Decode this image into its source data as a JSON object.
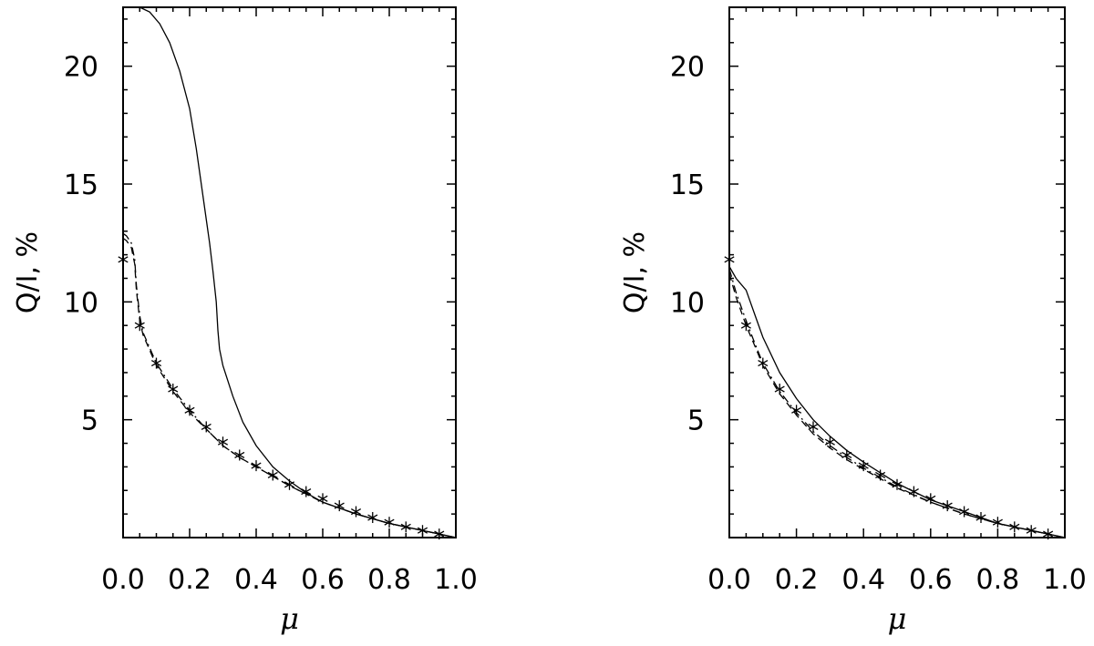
{
  "chart_data": [
    {
      "type": "line",
      "panel": "left",
      "xlabel": "μ",
      "ylabel": "Q/I, %",
      "xlim": [
        0.0,
        1.0
      ],
      "ylim": [
        0.0,
        22.5
      ],
      "xticks": [
        0.0,
        0.2,
        0.4,
        0.6,
        0.8,
        1.0
      ],
      "xtick_labels": [
        "0.0",
        "0.2",
        "0.4",
        "0.6",
        "0.8",
        "1.0"
      ],
      "yticks": [
        5,
        10,
        15,
        20
      ],
      "ytick_labels": [
        "5",
        "10",
        "15",
        "20"
      ],
      "grid": false,
      "series": [
        {
          "style": "solid",
          "x": [
            0.05,
            0.08,
            0.11,
            0.14,
            0.17,
            0.2,
            0.22,
            0.24,
            0.26,
            0.27,
            0.28,
            0.285,
            0.29,
            0.3,
            0.33,
            0.36,
            0.4,
            0.45,
            0.5,
            0.55,
            0.6,
            0.7,
            0.8,
            0.9,
            0.95,
            1.0
          ],
          "y": [
            22.5,
            22.3,
            21.8,
            21.0,
            19.8,
            18.2,
            16.5,
            14.5,
            12.5,
            11.3,
            10.0,
            8.8,
            8.0,
            7.3,
            6.0,
            4.9,
            3.9,
            3.0,
            2.4,
            1.9,
            1.5,
            1.0,
            0.6,
            0.3,
            0.15,
            0.0
          ]
        },
        {
          "style": "dashed",
          "x": [
            0.0,
            0.01,
            0.025,
            0.035,
            0.04,
            0.05,
            0.06,
            0.1,
            0.15,
            0.2,
            0.25,
            0.3,
            0.35,
            0.4,
            0.5,
            0.6,
            0.7,
            0.8,
            0.9,
            1.0
          ],
          "y": [
            12.7,
            12.6,
            12.3,
            11.6,
            10.5,
            9.2,
            8.6,
            7.3,
            6.2,
            5.3,
            4.6,
            3.9,
            3.4,
            3.0,
            2.2,
            1.5,
            1.0,
            0.6,
            0.3,
            0.0
          ]
        },
        {
          "style": "dash-dot",
          "x": [
            0.0,
            0.01,
            0.025,
            0.035,
            0.04,
            0.05,
            0.06,
            0.1,
            0.15,
            0.2,
            0.25,
            0.3,
            0.35,
            0.4,
            0.5,
            0.6,
            0.7,
            0.8,
            0.9,
            1.0
          ],
          "y": [
            12.9,
            12.8,
            12.5,
            11.8,
            10.7,
            9.4,
            8.7,
            7.4,
            6.3,
            5.4,
            4.6,
            3.9,
            3.4,
            3.0,
            2.2,
            1.5,
            1.0,
            0.6,
            0.3,
            0.0
          ]
        },
        {
          "style": "asterisk",
          "x": [
            0.0,
            0.05,
            0.1,
            0.15,
            0.2,
            0.25,
            0.3,
            0.35,
            0.4,
            0.45,
            0.5,
            0.55,
            0.6,
            0.65,
            0.7,
            0.75,
            0.8,
            0.85,
            0.9,
            0.95
          ],
          "y": [
            11.8,
            9.0,
            7.4,
            6.3,
            5.4,
            4.7,
            4.05,
            3.5,
            3.05,
            2.65,
            2.25,
            1.95,
            1.65,
            1.35,
            1.1,
            0.85,
            0.65,
            0.45,
            0.3,
            0.15
          ]
        }
      ]
    },
    {
      "type": "line",
      "panel": "right",
      "xlabel": "μ",
      "ylabel": "Q/I, %",
      "xlim": [
        0.0,
        1.0
      ],
      "ylim": [
        0.0,
        22.5
      ],
      "xticks": [
        0.0,
        0.2,
        0.4,
        0.6,
        0.8,
        1.0
      ],
      "xtick_labels": [
        "0.0",
        "0.2",
        "0.4",
        "0.6",
        "0.8",
        "1.0"
      ],
      "yticks": [
        5,
        10,
        15,
        20
      ],
      "ytick_labels": [
        "5",
        "10",
        "15",
        "20"
      ],
      "grid": false,
      "series": [
        {
          "style": "solid",
          "x": [
            0.0,
            0.02,
            0.05,
            0.08,
            0.1,
            0.15,
            0.2,
            0.25,
            0.3,
            0.35,
            0.4,
            0.5,
            0.6,
            0.7,
            0.8,
            0.9,
            1.0
          ],
          "y": [
            11.5,
            11.0,
            10.5,
            9.3,
            8.5,
            7.0,
            5.9,
            5.0,
            4.3,
            3.7,
            3.2,
            2.3,
            1.6,
            1.1,
            0.6,
            0.3,
            0.0
          ]
        },
        {
          "style": "dashed",
          "x": [
            0.0,
            0.02,
            0.05,
            0.08,
            0.1,
            0.15,
            0.2,
            0.25,
            0.3,
            0.35,
            0.4,
            0.5,
            0.6,
            0.7,
            0.8,
            0.9,
            1.0
          ],
          "y": [
            11.2,
            10.2,
            9.0,
            8.0,
            7.3,
            6.1,
            5.2,
            4.4,
            3.8,
            3.3,
            2.9,
            2.1,
            1.5,
            1.0,
            0.6,
            0.3,
            0.0
          ]
        },
        {
          "style": "dash-dot",
          "x": [
            0.0,
            0.02,
            0.05,
            0.08,
            0.1,
            0.15,
            0.2,
            0.25,
            0.3,
            0.35,
            0.4,
            0.5,
            0.6,
            0.7,
            0.8,
            0.9,
            1.0
          ],
          "y": [
            11.4,
            10.4,
            9.2,
            8.1,
            7.4,
            6.2,
            5.3,
            4.5,
            3.9,
            3.4,
            2.95,
            2.15,
            1.5,
            1.0,
            0.6,
            0.3,
            0.0
          ]
        },
        {
          "style": "asterisk",
          "x": [
            0.0,
            0.05,
            0.1,
            0.15,
            0.2,
            0.25,
            0.3,
            0.35,
            0.4,
            0.45,
            0.5,
            0.55,
            0.6,
            0.65,
            0.7,
            0.75,
            0.8,
            0.85,
            0.9,
            0.95
          ],
          "y": [
            11.8,
            9.0,
            7.4,
            6.3,
            5.4,
            4.7,
            4.05,
            3.5,
            3.05,
            2.65,
            2.25,
            1.95,
            1.65,
            1.35,
            1.1,
            0.85,
            0.65,
            0.45,
            0.3,
            0.15
          ]
        }
      ]
    }
  ]
}
